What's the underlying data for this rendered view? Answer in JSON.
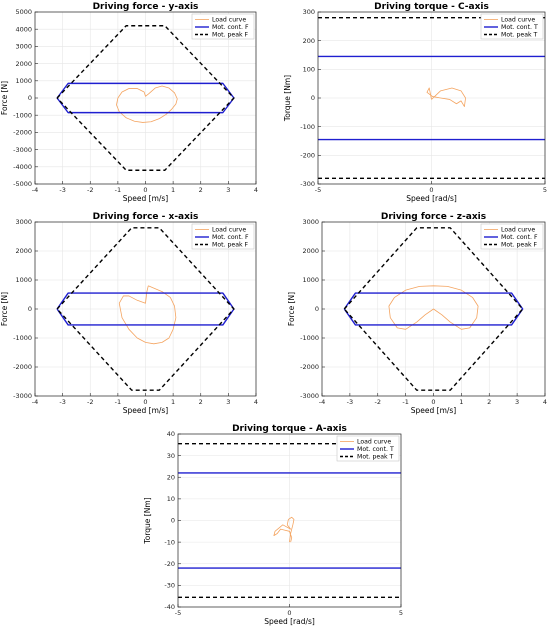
{
  "chart_data": [
    {
      "type": "line",
      "title": "Driving force - y-axis",
      "xlabel": "Speed [m/s]",
      "ylabel": "Force [N]",
      "xlim": [
        -4,
        4
      ],
      "ylim": [
        -5000,
        5000
      ],
      "xticks": [
        -4,
        -3,
        -2,
        -1,
        0,
        1,
        2,
        3,
        4
      ],
      "yticks": [
        -5000,
        -4000,
        -3000,
        -2000,
        -1000,
        0,
        1000,
        2000,
        3000,
        4000,
        5000
      ],
      "grid": true,
      "legend": "top-right",
      "series": [
        {
          "name": "Load curve",
          "color": "#f4a460",
          "style": "solid",
          "x": [
            0.12,
            0.35,
            0.6,
            0.85,
            1.05,
            1.15,
            1.1,
            0.95,
            0.75,
            0.5,
            0.2,
            -0.1,
            -0.4,
            -0.7,
            -0.95,
            -1.05,
            -1.0,
            -0.85,
            -0.6,
            -0.3,
            -0.05,
            0.0,
            0.12
          ],
          "y": [
            250,
            580,
            700,
            580,
            300,
            -50,
            -350,
            -650,
            -950,
            -1200,
            -1380,
            -1420,
            -1350,
            -1150,
            -800,
            -400,
            0,
            350,
            550,
            550,
            350,
            100,
            250
          ]
        },
        {
          "name": "Mot. cont. F",
          "color": "#1f1fd0",
          "style": "solid",
          "x": [
            -3.2,
            -2.8,
            2.8,
            3.2,
            2.8,
            -2.8,
            -3.2
          ],
          "y": [
            0,
            850,
            850,
            0,
            -850,
            -850,
            0
          ]
        },
        {
          "name": "Mot. peak F",
          "color": "#000000",
          "style": "dashed",
          "x": [
            -3.2,
            -0.7,
            0.7,
            3.2,
            0.7,
            -0.7,
            -3.2
          ],
          "y": [
            0,
            4200,
            4200,
            0,
            -4200,
            -4200,
            0
          ]
        }
      ]
    },
    {
      "type": "line",
      "title": "Driving torque - C-axis",
      "xlabel": "Speed [rad/s]",
      "ylabel": "Torque [Nm]",
      "xlim": [
        -5,
        5
      ],
      "ylim": [
        -300,
        300
      ],
      "xticks": [
        -5,
        0,
        5
      ],
      "yticks": [
        -300,
        -200,
        -100,
        0,
        100,
        200,
        300
      ],
      "grid": true,
      "legend": "top-right",
      "series": [
        {
          "name": "Load curve",
          "color": "#f4a460",
          "style": "solid",
          "x": [
            0.0,
            0.4,
            0.9,
            1.3,
            1.5,
            1.45,
            1.3,
            1.1,
            0.8,
            0.4,
            0.05,
            -0.2,
            -0.1,
            0.0
          ],
          "y": [
            -5,
            25,
            35,
            25,
            0,
            -30,
            -10,
            -20,
            -5,
            0,
            5,
            20,
            35,
            -5
          ]
        },
        {
          "name": "Mot. cont. T",
          "color": "#1f1fd0",
          "style": "solid",
          "x": [
            -5,
            5,
            null,
            -5,
            5
          ],
          "y": [
            145,
            145,
            null,
            -145,
            -145
          ]
        },
        {
          "name": "Mot. peak T",
          "color": "#000000",
          "style": "dashed",
          "x": [
            -5,
            5,
            null,
            -5,
            5
          ],
          "y": [
            280,
            280,
            null,
            -280,
            -280
          ]
        }
      ]
    },
    {
      "type": "line",
      "title": "Driving force - x-axis",
      "xlabel": "Speed [m/s]",
      "ylabel": "Force [N]",
      "xlim": [
        -4,
        4
      ],
      "ylim": [
        -3000,
        3000
      ],
      "xticks": [
        -4,
        -3,
        -2,
        -1,
        0,
        1,
        2,
        3,
        4
      ],
      "yticks": [
        -3000,
        -2000,
        -1000,
        0,
        1000,
        2000,
        3000
      ],
      "grid": true,
      "legend": "top-right",
      "series": [
        {
          "name": "Load curve",
          "color": "#f4a460",
          "style": "solid",
          "x": [
            0.1,
            0.3,
            0.6,
            0.9,
            1.05,
            1.1,
            1.0,
            0.85,
            0.6,
            0.3,
            0.0,
            -0.3,
            -0.6,
            -0.85,
            -0.95,
            -0.8,
            -0.6,
            -0.3,
            0.0,
            0.05,
            0.1
          ],
          "y": [
            800,
            720,
            600,
            400,
            100,
            -300,
            -700,
            -1000,
            -1150,
            -1200,
            -1150,
            -1000,
            -700,
            -300,
            200,
            450,
            450,
            300,
            200,
            600,
            800
          ]
        },
        {
          "name": "Mot. cont. F",
          "color": "#1f1fd0",
          "style": "solid",
          "x": [
            -3.2,
            -2.8,
            2.8,
            3.2,
            2.8,
            -2.8,
            -3.2
          ],
          "y": [
            0,
            550,
            550,
            0,
            -550,
            -550,
            0
          ]
        },
        {
          "name": "Mot. peak F",
          "color": "#000000",
          "style": "dashed",
          "x": [
            -3.2,
            -0.5,
            0.5,
            3.2,
            0.5,
            -0.5,
            -3.2
          ],
          "y": [
            0,
            2800,
            2800,
            0,
            -2800,
            -2800,
            0
          ]
        }
      ]
    },
    {
      "type": "line",
      "title": "Driving force - z-axis",
      "xlabel": "Speed [m/s]",
      "ylabel": "Force [N]",
      "xlim": [
        -4,
        4
      ],
      "ylim": [
        -3000,
        3000
      ],
      "xticks": [
        -4,
        -3,
        -2,
        -1,
        0,
        1,
        2,
        3,
        4
      ],
      "yticks": [
        -3000,
        -2000,
        -1000,
        0,
        1000,
        2000,
        3000
      ],
      "grid": true,
      "legend": "top-right",
      "series": [
        {
          "name": "Load curve",
          "color": "#f4a460",
          "style": "solid",
          "x": [
            0.0,
            0.5,
            1.0,
            1.4,
            1.6,
            1.55,
            1.3,
            1.0,
            0.6,
            0.3,
            0.0,
            -0.3,
            -0.6,
            -1.0,
            -1.3,
            -1.55,
            -1.6,
            -1.4,
            -1.0,
            -0.5,
            0.0
          ],
          "y": [
            800,
            780,
            650,
            400,
            100,
            -300,
            -650,
            -700,
            -450,
            -200,
            0,
            -200,
            -450,
            -700,
            -650,
            -300,
            100,
            400,
            650,
            780,
            800
          ]
        },
        {
          "name": "Mot. cont. F",
          "color": "#1f1fd0",
          "style": "solid",
          "x": [
            -3.2,
            -2.8,
            2.8,
            3.2,
            2.8,
            -2.8,
            -3.2
          ],
          "y": [
            0,
            550,
            550,
            0,
            -550,
            -550,
            0
          ]
        },
        {
          "name": "Mot. peak F",
          "color": "#000000",
          "style": "dashed",
          "x": [
            -3.2,
            -0.6,
            0.6,
            3.2,
            0.6,
            -0.6,
            -3.2
          ],
          "y": [
            0,
            2800,
            2800,
            0,
            -2800,
            -2800,
            0
          ]
        }
      ]
    },
    {
      "type": "line",
      "title": "Driving torque - A-axis",
      "xlabel": "Speed [rad/s]",
      "ylabel": "Torque [Nm]",
      "xlim": [
        -5,
        5
      ],
      "ylim": [
        -40,
        40
      ],
      "xticks": [
        -5,
        0,
        5
      ],
      "yticks": [
        -40,
        -30,
        -20,
        -10,
        0,
        10,
        20,
        30,
        40
      ],
      "grid": true,
      "legend": "top-right",
      "series": [
        {
          "name": "Load curve",
          "color": "#f4a460",
          "style": "solid",
          "x": [
            0.0,
            0.05,
            0.15,
            0.2,
            0.1,
            -0.05,
            -0.1,
            0.05,
            -0.3,
            -0.65,
            -0.7,
            -0.55,
            -0.4,
            -0.2,
            0.0,
            0.1,
            0.05
          ],
          "y": [
            -10,
            -6,
            -2,
            0.5,
            1.5,
            0.5,
            -2,
            -4,
            -2,
            -5,
            -7,
            -6,
            -4,
            -4.5,
            -5,
            -8,
            -10
          ]
        },
        {
          "name": "Mot. cont. T",
          "color": "#1f1fd0",
          "style": "solid",
          "x": [
            -5,
            5,
            null,
            -5,
            5
          ],
          "y": [
            22,
            22,
            null,
            -22,
            -22
          ]
        },
        {
          "name": "Mot. peak T",
          "color": "#000000",
          "style": "dashed",
          "x": [
            -5,
            5,
            null,
            -5,
            5
          ],
          "y": [
            35.5,
            35.5,
            null,
            -35.5,
            -35.5
          ]
        }
      ]
    }
  ]
}
